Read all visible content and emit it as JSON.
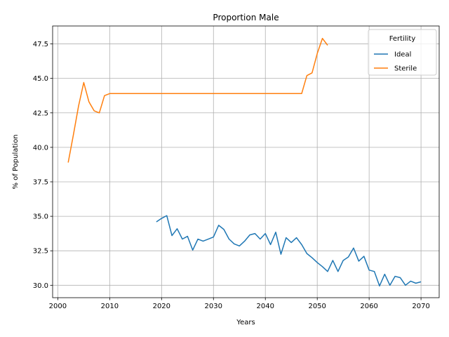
{
  "chart_data": {
    "type": "line",
    "title": "Proportion Male",
    "xlabel": "Years",
    "ylabel": "% of Population",
    "xlim": [
      1999,
      2073.5
    ],
    "ylim": [
      29.1,
      48.8
    ],
    "xticks": [
      2000,
      2010,
      2020,
      2030,
      2040,
      2050,
      2060,
      2070
    ],
    "yticks": [
      30.0,
      32.5,
      35.0,
      37.5,
      40.0,
      42.5,
      45.0,
      47.5
    ],
    "xtick_labels": [
      "2000",
      "2010",
      "2020",
      "2030",
      "2040",
      "2050",
      "2060",
      "2070"
    ],
    "ytick_labels": [
      "30.0",
      "32.5",
      "35.0",
      "37.5",
      "40.0",
      "42.5",
      "45.0",
      "47.5"
    ],
    "grid": true,
    "legend": {
      "title": "Fertility",
      "placement": "top-right"
    },
    "series": [
      {
        "name": "Ideal",
        "color": "#1f77b4",
        "x": [
          2019,
          2020,
          2021,
          2022,
          2023,
          2024,
          2025,
          2026,
          2027,
          2028,
          2029,
          2030,
          2031,
          2032,
          2033,
          2034,
          2035,
          2036,
          2037,
          2038,
          2039,
          2040,
          2041,
          2042,
          2043,
          2044,
          2045,
          2046,
          2047,
          2048,
          2049,
          2050,
          2051,
          2052,
          2053,
          2054,
          2055,
          2056,
          2057,
          2058,
          2059,
          2060,
          2061,
          2062,
          2063,
          2064,
          2065,
          2066,
          2067,
          2068,
          2069,
          2070
        ],
        "y": [
          34.6,
          34.85,
          35.05,
          33.6,
          34.1,
          33.35,
          33.55,
          32.55,
          33.35,
          33.2,
          33.35,
          33.5,
          34.35,
          34.05,
          33.35,
          33.0,
          32.85,
          33.2,
          33.65,
          33.75,
          33.35,
          33.75,
          32.95,
          33.85,
          32.25,
          33.45,
          33.1,
          33.45,
          32.95,
          32.3,
          32.0,
          31.65,
          31.35,
          31.0,
          31.8,
          31.0,
          31.8,
          32.05,
          32.7,
          31.75,
          32.1,
          31.1,
          31.0,
          29.95,
          30.8,
          30.0,
          30.65,
          30.55,
          30.0,
          30.3,
          30.15,
          30.25
        ]
      },
      {
        "name": "Sterile",
        "color": "#ff7f0e",
        "x": [
          2002,
          2003,
          2004,
          2005,
          2006,
          2007,
          2008,
          2009,
          2010,
          2011,
          2012,
          2013,
          2014,
          2015,
          2016,
          2017,
          2018,
          2019,
          2020,
          2021,
          2022,
          2023,
          2024,
          2025,
          2026,
          2027,
          2028,
          2029,
          2030,
          2031,
          2032,
          2033,
          2034,
          2035,
          2036,
          2037,
          2038,
          2039,
          2040,
          2041,
          2042,
          2043,
          2044,
          2045,
          2046,
          2047,
          2048,
          2049,
          2050,
          2051,
          2052
        ],
        "y": [
          38.9,
          40.9,
          43.0,
          44.7,
          43.3,
          42.65,
          42.5,
          43.75,
          43.9,
          43.9,
          43.9,
          43.9,
          43.9,
          43.9,
          43.9,
          43.9,
          43.9,
          43.9,
          43.9,
          43.9,
          43.9,
          43.9,
          43.9,
          43.9,
          43.9,
          43.9,
          43.9,
          43.9,
          43.9,
          43.9,
          43.9,
          43.9,
          43.9,
          43.9,
          43.9,
          43.9,
          43.9,
          43.9,
          43.9,
          43.9,
          43.9,
          43.9,
          43.9,
          43.9,
          43.9,
          43.9,
          45.2,
          45.4,
          46.8,
          47.9,
          47.4
        ]
      }
    ]
  }
}
